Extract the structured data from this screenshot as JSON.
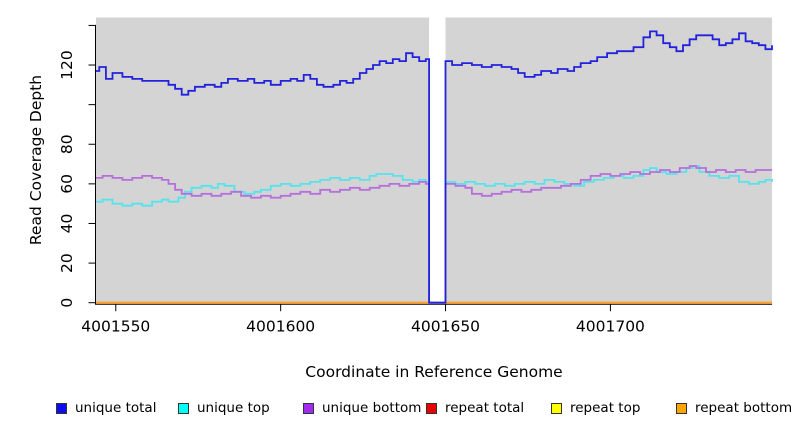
{
  "figure": {
    "background": "#ffffff"
  },
  "chart_data": {
    "type": "line",
    "subtype": "step",
    "title": "",
    "xlabel": "Coordinate in Reference Genome",
    "ylabel": "Read Coverage Depth",
    "plot_background": "#d4d4d4",
    "grid": "off",
    "legend_position": "bottom",
    "xlim": [
      4001544,
      4001749
    ],
    "ylim": [
      0,
      144
    ],
    "x_ticks": [
      {
        "v": 4001550,
        "label": "4001550"
      },
      {
        "v": 4001600,
        "label": "4001600"
      },
      {
        "v": 4001650,
        "label": "4001650"
      },
      {
        "v": 4001700,
        "label": "4001700"
      }
    ],
    "y_ticks": [
      {
        "v": 0,
        "label": "0"
      },
      {
        "v": 20,
        "label": "20"
      },
      {
        "v": 40,
        "label": "40"
      },
      {
        "v": 60,
        "label": "60"
      },
      {
        "v": 80,
        "label": "80"
      },
      {
        "v": 100,
        "label": ""
      },
      {
        "v": 120,
        "label": "120"
      },
      {
        "v": 140,
        "label": ""
      }
    ],
    "coverage_gap": {
      "x_start": 4001645,
      "x_end": 4001650,
      "fill": "#ffffff"
    },
    "axis_color": "#000000",
    "draw_order": [
      3,
      4,
      5,
      1,
      2,
      0
    ],
    "series": [
      {
        "name": "unique total",
        "color": "#2222dd",
        "points": [
          [
            4001544,
            117
          ],
          [
            4001545,
            119
          ],
          [
            4001547,
            113
          ],
          [
            4001549,
            116
          ],
          [
            4001552,
            114
          ],
          [
            4001555,
            113
          ],
          [
            4001558,
            112
          ],
          [
            4001563,
            112
          ],
          [
            4001566,
            110
          ],
          [
            4001568,
            108
          ],
          [
            4001570,
            105
          ],
          [
            4001572,
            107
          ],
          [
            4001574,
            109
          ],
          [
            4001577,
            110
          ],
          [
            4001580,
            109
          ],
          [
            4001582,
            111
          ],
          [
            4001584,
            113
          ],
          [
            4001587,
            112
          ],
          [
            4001590,
            113
          ],
          [
            4001592,
            111
          ],
          [
            4001595,
            112
          ],
          [
            4001597,
            110
          ],
          [
            4001600,
            112
          ],
          [
            4001603,
            113
          ],
          [
            4001605,
            112
          ],
          [
            4001607,
            115
          ],
          [
            4001609,
            113
          ],
          [
            4001611,
            110
          ],
          [
            4001613,
            109
          ],
          [
            4001616,
            110
          ],
          [
            4001618,
            112
          ],
          [
            4001620,
            111
          ],
          [
            4001622,
            113
          ],
          [
            4001624,
            116
          ],
          [
            4001626,
            118
          ],
          [
            4001628,
            120
          ],
          [
            4001630,
            122
          ],
          [
            4001632,
            121
          ],
          [
            4001634,
            123
          ],
          [
            4001636,
            122
          ],
          [
            4001638,
            126
          ],
          [
            4001640,
            124
          ],
          [
            4001642,
            122
          ],
          [
            4001644,
            123
          ],
          [
            4001645,
            0
          ],
          [
            4001650,
            122
          ],
          [
            4001652,
            120
          ],
          [
            4001655,
            121
          ],
          [
            4001658,
            120
          ],
          [
            4001661,
            119
          ],
          [
            4001664,
            120
          ],
          [
            4001667,
            119
          ],
          [
            4001670,
            118
          ],
          [
            4001672,
            116
          ],
          [
            4001674,
            114
          ],
          [
            4001677,
            115
          ],
          [
            4001679,
            117
          ],
          [
            4001682,
            116
          ],
          [
            4001684,
            118
          ],
          [
            4001687,
            117
          ],
          [
            4001689,
            119
          ],
          [
            4001691,
            121
          ],
          [
            4001694,
            122
          ],
          [
            4001696,
            124
          ],
          [
            4001699,
            126
          ],
          [
            4001702,
            127
          ],
          [
            4001704,
            127
          ],
          [
            4001707,
            129
          ],
          [
            4001710,
            134
          ],
          [
            4001712,
            137
          ],
          [
            4001714,
            135
          ],
          [
            4001716,
            131
          ],
          [
            4001718,
            129
          ],
          [
            4001720,
            127
          ],
          [
            4001722,
            130
          ],
          [
            4001724,
            133
          ],
          [
            4001726,
            135
          ],
          [
            4001729,
            135
          ],
          [
            4001731,
            133
          ],
          [
            4001733,
            130
          ],
          [
            4001735,
            131
          ],
          [
            4001737,
            133
          ],
          [
            4001739,
            136
          ],
          [
            4001741,
            132
          ],
          [
            4001743,
            131
          ],
          [
            4001745,
            130
          ],
          [
            4001747,
            128
          ],
          [
            4001749,
            130
          ]
        ]
      },
      {
        "name": "unique top",
        "color": "#55e4ec",
        "points": [
          [
            4001544,
            51
          ],
          [
            4001546,
            52
          ],
          [
            4001549,
            50
          ],
          [
            4001552,
            49
          ],
          [
            4001555,
            50
          ],
          [
            4001558,
            49
          ],
          [
            4001561,
            51
          ],
          [
            4001564,
            52
          ],
          [
            4001566,
            51
          ],
          [
            4001569,
            53
          ],
          [
            4001571,
            56
          ],
          [
            4001573,
            58
          ],
          [
            4001576,
            59
          ],
          [
            4001579,
            58
          ],
          [
            4001581,
            60
          ],
          [
            4001583,
            59
          ],
          [
            4001586,
            56
          ],
          [
            4001589,
            55
          ],
          [
            4001592,
            56
          ],
          [
            4001594,
            57
          ],
          [
            4001597,
            59
          ],
          [
            4001600,
            60
          ],
          [
            4001603,
            59
          ],
          [
            4001606,
            60
          ],
          [
            4001609,
            61
          ],
          [
            4001612,
            62
          ],
          [
            4001615,
            63
          ],
          [
            4001618,
            62
          ],
          [
            4001621,
            63
          ],
          [
            4001624,
            62
          ],
          [
            4001627,
            64
          ],
          [
            4001629,
            65
          ],
          [
            4001632,
            65
          ],
          [
            4001634,
            64
          ],
          [
            4001637,
            62
          ],
          [
            4001640,
            61
          ],
          [
            4001642,
            62
          ],
          [
            4001644,
            61
          ],
          [
            4001645,
            0
          ],
          [
            4001650,
            61
          ],
          [
            4001653,
            60
          ],
          [
            4001656,
            61
          ],
          [
            4001659,
            60
          ],
          [
            4001662,
            59
          ],
          [
            4001665,
            60
          ],
          [
            4001668,
            59
          ],
          [
            4001671,
            60
          ],
          [
            4001674,
            61
          ],
          [
            4001677,
            60
          ],
          [
            4001680,
            62
          ],
          [
            4001683,
            61
          ],
          [
            4001686,
            60
          ],
          [
            4001689,
            59
          ],
          [
            4001692,
            61
          ],
          [
            4001695,
            62
          ],
          [
            4001698,
            63
          ],
          [
            4001701,
            64
          ],
          [
            4001704,
            63
          ],
          [
            4001707,
            64
          ],
          [
            4001710,
            67
          ],
          [
            4001712,
            68
          ],
          [
            4001714,
            66
          ],
          [
            4001717,
            65
          ],
          [
            4001720,
            66
          ],
          [
            4001723,
            68
          ],
          [
            4001725,
            69
          ],
          [
            4001727,
            66
          ],
          [
            4001730,
            64
          ],
          [
            4001733,
            63
          ],
          [
            4001736,
            64
          ],
          [
            4001739,
            61
          ],
          [
            4001742,
            60
          ],
          [
            4001745,
            61
          ],
          [
            4001747,
            62
          ],
          [
            4001749,
            61
          ]
        ]
      },
      {
        "name": "unique bottom",
        "color": "#b66fdb",
        "points": [
          [
            4001544,
            63
          ],
          [
            4001546,
            64
          ],
          [
            4001549,
            63
          ],
          [
            4001552,
            62
          ],
          [
            4001555,
            63
          ],
          [
            4001558,
            64
          ],
          [
            4001561,
            63
          ],
          [
            4001564,
            62
          ],
          [
            4001566,
            60
          ],
          [
            4001568,
            57
          ],
          [
            4001570,
            55
          ],
          [
            4001573,
            54
          ],
          [
            4001576,
            55
          ],
          [
            4001579,
            54
          ],
          [
            4001582,
            55
          ],
          [
            4001585,
            56
          ],
          [
            4001588,
            54
          ],
          [
            4001591,
            53
          ],
          [
            4001594,
            54
          ],
          [
            4001597,
            53
          ],
          [
            4001600,
            54
          ],
          [
            4001603,
            55
          ],
          [
            4001606,
            56
          ],
          [
            4001609,
            55
          ],
          [
            4001612,
            57
          ],
          [
            4001615,
            56
          ],
          [
            4001618,
            57
          ],
          [
            4001621,
            58
          ],
          [
            4001624,
            57
          ],
          [
            4001627,
            58
          ],
          [
            4001630,
            59
          ],
          [
            4001633,
            60
          ],
          [
            4001636,
            59
          ],
          [
            4001639,
            60
          ],
          [
            4001642,
            61
          ],
          [
            4001644,
            60
          ],
          [
            4001645,
            0
          ],
          [
            4001650,
            60
          ],
          [
            4001653,
            59
          ],
          [
            4001656,
            58
          ],
          [
            4001658,
            55
          ],
          [
            4001661,
            54
          ],
          [
            4001664,
            55
          ],
          [
            4001667,
            56
          ],
          [
            4001670,
            57
          ],
          [
            4001673,
            56
          ],
          [
            4001676,
            57
          ],
          [
            4001679,
            58
          ],
          [
            4001682,
            58
          ],
          [
            4001685,
            59
          ],
          [
            4001688,
            60
          ],
          [
            4001691,
            62
          ],
          [
            4001694,
            64
          ],
          [
            4001697,
            65
          ],
          [
            4001700,
            64
          ],
          [
            4001703,
            65
          ],
          [
            4001706,
            66
          ],
          [
            4001709,
            65
          ],
          [
            4001712,
            66
          ],
          [
            4001715,
            67
          ],
          [
            4001718,
            66
          ],
          [
            4001721,
            68
          ],
          [
            4001724,
            69
          ],
          [
            4001726,
            68
          ],
          [
            4001729,
            66
          ],
          [
            4001732,
            67
          ],
          [
            4001735,
            66
          ],
          [
            4001738,
            67
          ],
          [
            4001741,
            66
          ],
          [
            4001744,
            67
          ],
          [
            4001747,
            67
          ],
          [
            4001749,
            67
          ]
        ]
      },
      {
        "name": "repeat total",
        "color": "#dd2222",
        "points": [
          [
            4001544,
            0
          ],
          [
            4001749,
            0
          ]
        ]
      },
      {
        "name": "repeat top",
        "color": "#f5f500",
        "points": [
          [
            4001544,
            0
          ],
          [
            4001749,
            0
          ]
        ]
      },
      {
        "name": "repeat bottom",
        "color": "#ffa033",
        "points": [
          [
            4001544,
            0
          ],
          [
            4001749,
            0
          ]
        ]
      }
    ],
    "legend": [
      {
        "label": "unique total",
        "color": "#0d0df0"
      },
      {
        "label": "unique top",
        "color": "#00ffff"
      },
      {
        "label": "unique bottom",
        "color": "#a12cf0"
      },
      {
        "label": "repeat total",
        "color": "#e80000"
      },
      {
        "label": "repeat top",
        "color": "#ffff00"
      },
      {
        "label": "repeat bottom",
        "color": "#ffa500"
      }
    ]
  }
}
